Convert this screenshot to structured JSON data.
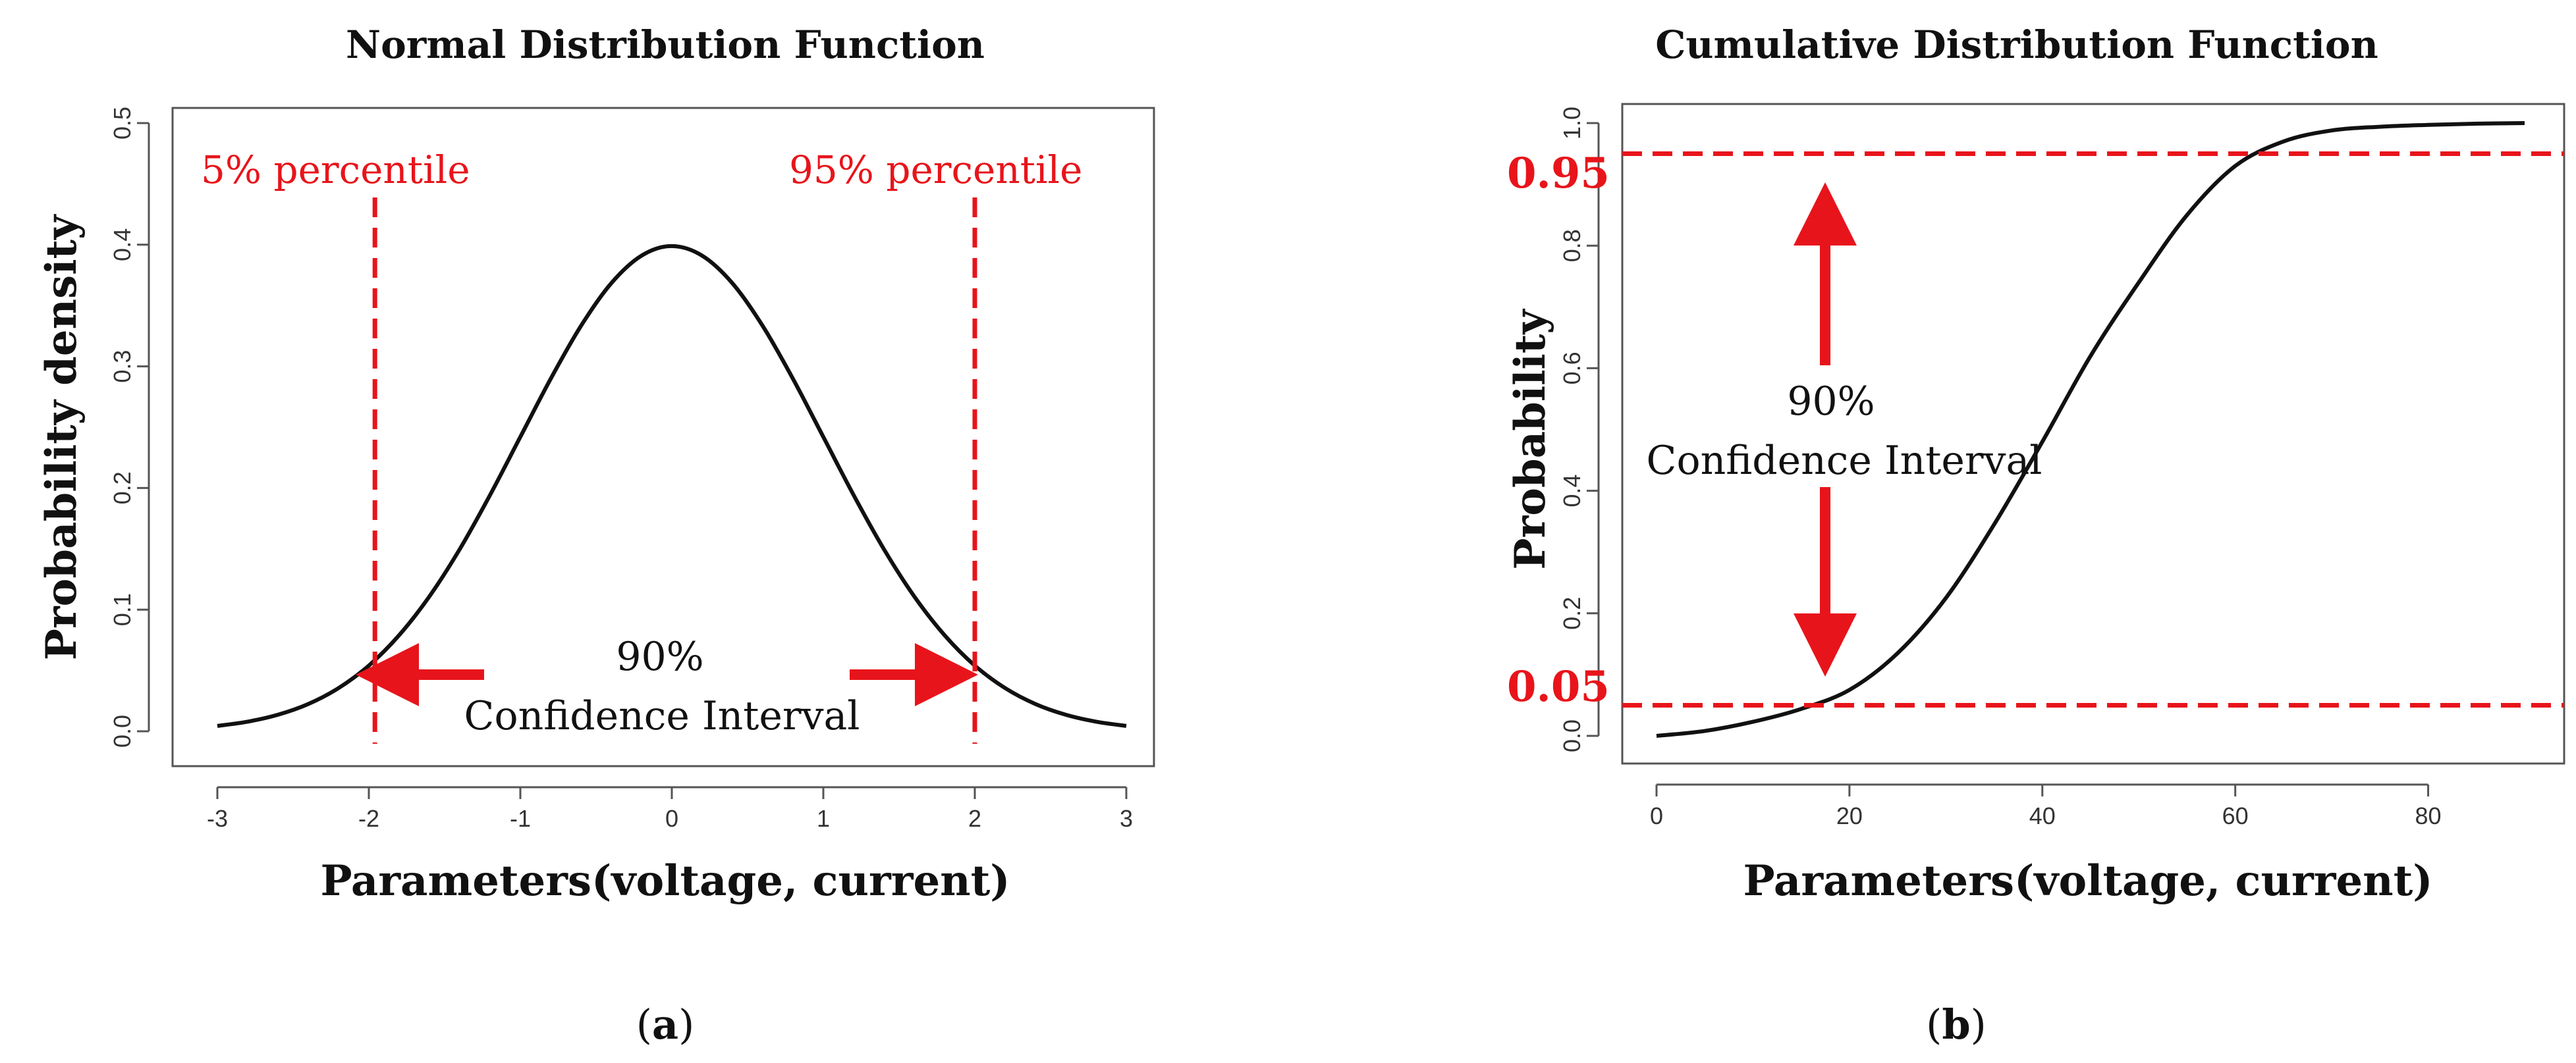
{
  "chart_data": [
    {
      "type": "line",
      "title": "Normal Distribution Function",
      "xlabel": "Parameters(voltage, current)",
      "ylabel": "Probability density",
      "xlim": [
        -3,
        3
      ],
      "ylim": [
        0,
        0.5
      ],
      "x_ticks": [
        "-3",
        "-2",
        "-1",
        "0",
        "1",
        "2",
        "3"
      ],
      "y_ticks": [
        "0.0",
        "0.1",
        "0.2",
        "0.3",
        "0.4",
        "0.5"
      ],
      "x_tick_values": [
        -3,
        -2,
        -1,
        0,
        1,
        2,
        3
      ],
      "y_tick_values": [
        0,
        0.1,
        0.2,
        0.3,
        0.4,
        0.5
      ],
      "series": [
        {
          "name": "pdf",
          "x": [
            -3,
            -2.8,
            -2.6,
            -2.4,
            -2.2,
            -2,
            -1.8,
            -1.6,
            -1.4,
            -1.2,
            -1,
            -0.8,
            -0.6,
            -0.4,
            -0.2,
            0,
            0.2,
            0.4,
            0.6,
            0.8,
            1,
            1.2,
            1.4,
            1.6,
            1.8,
            2,
            2.2,
            2.4,
            2.6,
            2.8,
            3
          ],
          "values": [
            0.0044,
            0.0079,
            0.0136,
            0.0224,
            0.0355,
            0.054,
            0.079,
            0.1109,
            0.1497,
            0.1942,
            0.242,
            0.2897,
            0.3332,
            0.3683,
            0.391,
            0.3989,
            0.391,
            0.3683,
            0.3332,
            0.2897,
            0.242,
            0.1942,
            0.1497,
            0.1109,
            0.079,
            0.054,
            0.0355,
            0.0224,
            0.0136,
            0.0079,
            0.0044
          ]
        }
      ],
      "reference_lines": {
        "vertical_x": [
          -1.96,
          2
        ],
        "lower_label": "5% percentile",
        "upper_label": "95% percentile"
      },
      "annotations": {
        "ci_percent": "90%",
        "ci_text": "Confidence Interval"
      },
      "panel_label": {
        "open": "(",
        "letter": "a",
        "close": ")"
      }
    },
    {
      "type": "line",
      "title": "Cumulative Distribution Function",
      "xlabel": "Parameters(voltage, current)",
      "ylabel": "Probability",
      "xlim": [
        0,
        90
      ],
      "ylim": [
        0,
        1
      ],
      "x_ticks": [
        "0",
        "20",
        "40",
        "60",
        "80"
      ],
      "y_ticks": [
        "0.0",
        "0.2",
        "0.4",
        "0.6",
        "0.8",
        "1.0"
      ],
      "x_tick_values": [
        0,
        20,
        40,
        60,
        80
      ],
      "y_tick_values": [
        0,
        0.2,
        0.4,
        0.6,
        0.8,
        1.0
      ],
      "series": [
        {
          "name": "cdf",
          "x": [
            0,
            5,
            10,
            15,
            20,
            25,
            30,
            35,
            40,
            45,
            50,
            55,
            60,
            65,
            70,
            75,
            80,
            85,
            90
          ],
          "values": [
            0.0,
            0.008,
            0.023,
            0.044,
            0.075,
            0.135,
            0.225,
            0.345,
            0.48,
            0.62,
            0.74,
            0.85,
            0.93,
            0.97,
            0.988,
            0.994,
            0.997,
            0.999,
            1.0
          ]
        }
      ],
      "reference_lines": {
        "horizontal_y": [
          0.95,
          0.05
        ],
        "upper_label": "0.95",
        "lower_label": "0.05"
      },
      "annotations": {
        "ci_percent": "90%",
        "ci_text": "Confidence Interval"
      },
      "panel_label": {
        "open": "(",
        "letter": "b",
        "close": ")"
      }
    }
  ],
  "colors": {
    "line": "#111111",
    "reference": "#e8141b",
    "axis": "#555555"
  }
}
